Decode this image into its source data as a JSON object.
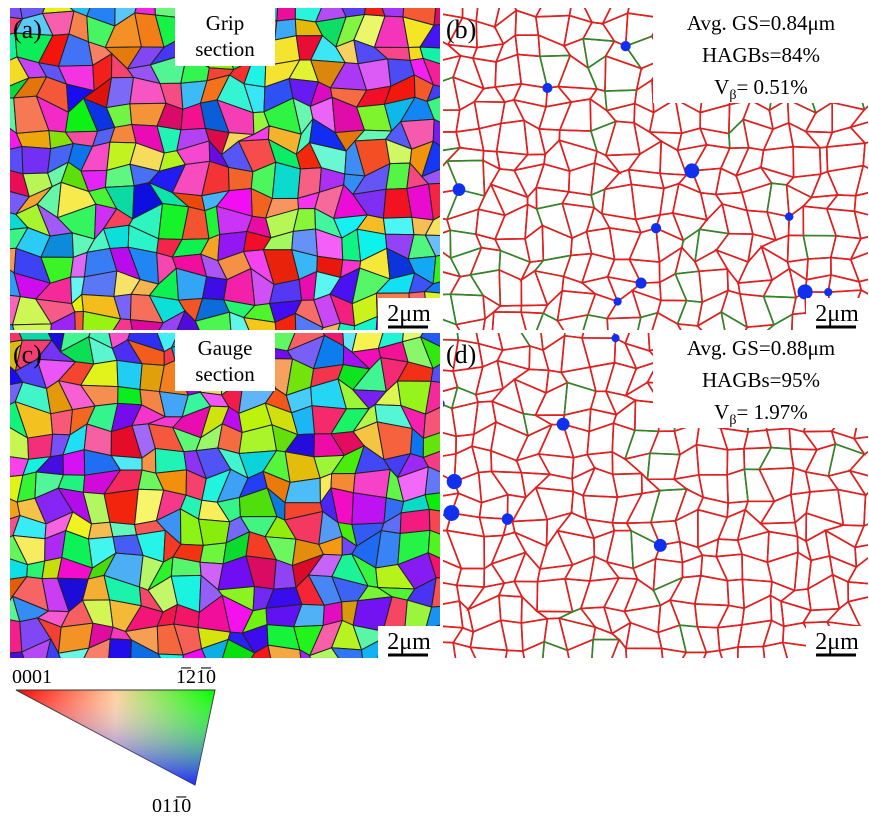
{
  "panels": [
    {
      "label": "(a)",
      "section": [
        "Grip",
        "section"
      ],
      "scale": "2μm"
    },
    {
      "label": "(b)",
      "stats": [
        "Avg. GS=0.84μm",
        "HAGBs=84%"
      ],
      "vbeta": {
        "main": "V",
        "sub": "β",
        "rest": "= 0.51%"
      },
      "scale": "2μm"
    },
    {
      "label": "(c)",
      "section": [
        "Gauge",
        "section"
      ],
      "scale": "2μm"
    },
    {
      "label": "(d)",
      "stats": [
        "Avg. GS=0.88μm",
        "HAGBs=95%"
      ],
      "vbeta": {
        "main": "V",
        "sub": "β",
        "rest": "= 1.97%"
      },
      "scale": "2μm"
    }
  ],
  "legend": {
    "top_left": "0001",
    "top_right": "1̅21̅0",
    "bottom": "011̅0"
  }
}
